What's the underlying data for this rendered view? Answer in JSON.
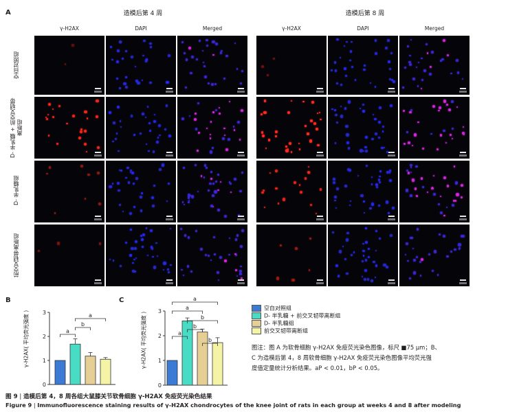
{
  "panel_a": {
    "letter": "A",
    "groups": [
      {
        "title": "造模后第 4 周"
      },
      {
        "title": "造模后第 8 周"
      }
    ],
    "channels": [
      "γ-H2AX",
      "DAPI",
      "Merged"
    ],
    "rows": [
      "空白对照组",
      "D- 半乳糖 + 前交叉韧带离断组",
      "D- 半乳糖组",
      "前交叉韧带离断组"
    ]
  },
  "panel_b": {
    "letter": "B",
    "ylabel": "γ-H2AX( 平均荧光强度 )",
    "sig_marks": [
      "a",
      "b",
      "a"
    ]
  },
  "panel_c": {
    "letter": "C",
    "ylabel": "γ-H2AX( 平均荧光强度 )",
    "sig_marks": [
      "a",
      "a",
      "a",
      "b",
      "b",
      "b"
    ]
  },
  "legend": {
    "items": [
      {
        "label": "空白对照组",
        "color": "#3b7bd6"
      },
      {
        "label": "D- 半乳糖 + 前交叉韧带离断组",
        "color": "#48dcc4"
      },
      {
        "label": "D- 半乳糖组",
        "color": "#e5cf94"
      },
      {
        "label": "前交叉韧带离断组",
        "color": "#f4f3a6"
      }
    ]
  },
  "note": {
    "lines": [
      "图注：图 A 为软骨细胞 γ-H2AX 免疫荧光染色图像，标尺 ■75 μm；B、",
      "C 为造模后第 4，8 周软骨细胞 γ-H2AX 免疫荧光染色图像平均荧光强",
      "度值定量统计分析结果。aP < 0.01，bP < 0.05。"
    ]
  },
  "caption": {
    "cn_label": "图 9",
    "cn_text": "造模后第 4，8 周各组大鼠膝关节软骨细胞 γ-H2AX 免疫荧光染色结果",
    "en_label": "Figure 9",
    "en_text": "Immunofluorescence staining results of γ-H2AX chondrocytes of the knee joint of rats in each group at weeks 4 and 8 after modeling"
  },
  "chart_data": [
    {
      "type": "bar",
      "title": "",
      "ylabel": "γ-H2AX( 平均荧光强度 )",
      "xlabel": "",
      "ylim": [
        0,
        3
      ],
      "yticks": [
        0,
        1,
        2,
        3
      ],
      "categories": [
        "空白对照组",
        "D- 半乳糖 + 前交叉韧带离断组",
        "D- 半乳糖组",
        "前交叉韧带离断组"
      ],
      "values": [
        1.0,
        1.68,
        1.18,
        1.05
      ],
      "errors": [
        0.0,
        0.22,
        0.15,
        0.07
      ],
      "colors": [
        "#3b7bd6",
        "#48dcc4",
        "#e5cf94",
        "#f4f3a6"
      ],
      "significance": [
        {
          "from": 0,
          "to": 1,
          "label": "a"
        },
        {
          "from": 1,
          "to": 2,
          "label": "b"
        },
        {
          "from": 1,
          "to": 3,
          "label": "a"
        }
      ]
    },
    {
      "type": "bar",
      "title": "",
      "ylabel": "γ-H2AX( 平均荧光强度 )",
      "xlabel": "",
      "ylim": [
        0,
        3
      ],
      "yticks": [
        0,
        1,
        2,
        3
      ],
      "categories": [
        "空白对照组",
        "D- 半乳糖 + 前交叉韧带离断组",
        "D- 半乳糖组",
        "前交叉韧带离断组"
      ],
      "values": [
        1.0,
        2.6,
        2.15,
        1.72
      ],
      "errors": [
        0.0,
        0.12,
        0.12,
        0.2
      ],
      "colors": [
        "#3b7bd6",
        "#48dcc4",
        "#e5cf94",
        "#f4f3a6"
      ],
      "significance": [
        {
          "from": 0,
          "to": 1,
          "label": "a"
        },
        {
          "from": 1,
          "to": 2,
          "label": "b"
        },
        {
          "from": 2,
          "to": 3,
          "label": "b"
        },
        {
          "from": 1,
          "to": 3,
          "label": "b"
        },
        {
          "from": 0,
          "to": 2,
          "label": "a"
        },
        {
          "from": 0,
          "to": 3,
          "label": "a"
        }
      ]
    }
  ]
}
